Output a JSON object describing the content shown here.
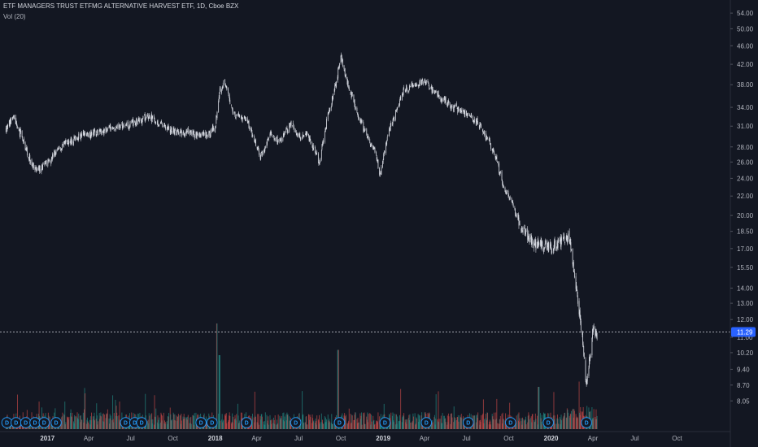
{
  "legend": {
    "title": "ETF MANAGERS TRUST ETFMG ALTERNATIVE HARVEST ETF, 1D, Cboe BZX",
    "volume": "Vol (20)"
  },
  "colors": {
    "background": "#131722",
    "up": "#26a69a",
    "down": "#ef5350",
    "candle": "#d1d4dc",
    "dividend_marker": "#2196f3",
    "price_tag": "#2962ff"
  },
  "current_price": "11.29",
  "dividend_marker_label": "D",
  "chart_data": {
    "type": "candlestick",
    "y_scale": "log",
    "ylim": [
      7.5,
      56
    ],
    "y_ticks": [
      "54.00",
      "50.00",
      "46.00",
      "42.00",
      "38.00",
      "34.00",
      "31.00",
      "28.00",
      "26.00",
      "24.00",
      "22.00",
      "20.00",
      "18.50",
      "17.00",
      "15.50",
      "14.00",
      "13.00",
      "12.00",
      "11.00",
      "10.20",
      "9.40",
      "8.70",
      "8.05"
    ],
    "x_ticks": [
      "2017",
      "Apr",
      "Jul",
      "Oct",
      "2018",
      "Apr",
      "Jul",
      "Oct",
      "2019",
      "Apr",
      "Jul",
      "Oct",
      "2020",
      "Apr",
      "Jul",
      "Oct"
    ],
    "x_bold_ticks": [
      "2017",
      "2018",
      "2019",
      "2020"
    ],
    "price_path": [
      [
        "2016-10-01",
        30.5
      ],
      [
        "2016-10-20",
        32.5
      ],
      [
        "2016-11-05",
        29.5
      ],
      [
        "2016-11-20",
        27.0
      ],
      [
        "2016-12-05",
        24.8
      ],
      [
        "2016-12-25",
        25.5
      ],
      [
        "2017-01-15",
        27.0
      ],
      [
        "2017-02-10",
        28.5
      ],
      [
        "2017-03-10",
        29.5
      ],
      [
        "2017-04-10",
        30.0
      ],
      [
        "2017-05-10",
        30.5
      ],
      [
        "2017-06-10",
        31.0
      ],
      [
        "2017-07-10",
        31.5
      ],
      [
        "2017-08-10",
        32.5
      ],
      [
        "2017-09-10",
        31.0
      ],
      [
        "2017-10-10",
        30.0
      ],
      [
        "2017-11-10",
        30.0
      ],
      [
        "2017-12-15",
        29.5
      ],
      [
        "2018-01-01",
        31.0
      ],
      [
        "2018-01-10",
        37.0
      ],
      [
        "2018-01-20",
        38.5
      ],
      [
        "2018-02-10",
        33.0
      ],
      [
        "2018-03-10",
        32.0
      ],
      [
        "2018-04-01",
        28.0
      ],
      [
        "2018-04-10",
        26.5
      ],
      [
        "2018-05-01",
        30.0
      ],
      [
        "2018-05-20",
        28.5
      ],
      [
        "2018-06-15",
        31.5
      ],
      [
        "2018-07-01",
        29.5
      ],
      [
        "2018-07-20",
        30.0
      ],
      [
        "2018-08-15",
        26.0
      ],
      [
        "2018-09-01",
        32.0
      ],
      [
        "2018-09-20",
        38.0
      ],
      [
        "2018-10-01",
        44.0
      ],
      [
        "2018-10-15",
        38.5
      ],
      [
        "2018-11-01",
        34.0
      ],
      [
        "2018-11-20",
        30.5
      ],
      [
        "2018-12-15",
        27.0
      ],
      [
        "2018-12-25",
        24.5
      ],
      [
        "2019-01-15",
        30.5
      ],
      [
        "2019-02-15",
        37.0
      ],
      [
        "2019-03-15",
        38.0
      ],
      [
        "2019-04-01",
        38.5
      ],
      [
        "2019-05-01",
        36.0
      ],
      [
        "2019-06-01",
        34.0
      ],
      [
        "2019-07-01",
        33.0
      ],
      [
        "2019-08-01",
        31.0
      ],
      [
        "2019-09-01",
        27.0
      ],
      [
        "2019-09-20",
        23.0
      ],
      [
        "2019-10-10",
        21.0
      ],
      [
        "2019-11-01",
        18.5
      ],
      [
        "2019-12-01",
        17.5
      ],
      [
        "2020-01-01",
        17.0
      ],
      [
        "2020-01-20",
        17.5
      ],
      [
        "2020-02-10",
        18.0
      ],
      [
        "2020-02-20",
        15.0
      ],
      [
        "2020-03-05",
        12.0
      ],
      [
        "2020-03-18",
        8.6
      ],
      [
        "2020-03-25",
        10.0
      ],
      [
        "2020-04-01",
        11.5
      ],
      [
        "2020-04-10",
        11.29
      ]
    ],
    "volume_spikes": [
      [
        "2018-01-05",
        10.0
      ],
      [
        "2018-01-10",
        7.0
      ],
      [
        "2018-09-25",
        7.5
      ],
      [
        "2019-12-05",
        4.0
      ],
      [
        "2020-03-01",
        4.0
      ]
    ],
    "dividend_dates": [
      "2016-10-05",
      "2016-10-25",
      "2016-11-15",
      "2016-12-05",
      "2016-12-25",
      "2017-01-20",
      "2017-06-20",
      "2017-07-10",
      "2017-07-25",
      "2017-12-01",
      "2017-12-25",
      "2018-03-10",
      "2018-06-25",
      "2018-09-28",
      "2019-01-05",
      "2019-04-05",
      "2019-07-05",
      "2019-10-05",
      "2019-12-26",
      "2020-03-18"
    ]
  }
}
